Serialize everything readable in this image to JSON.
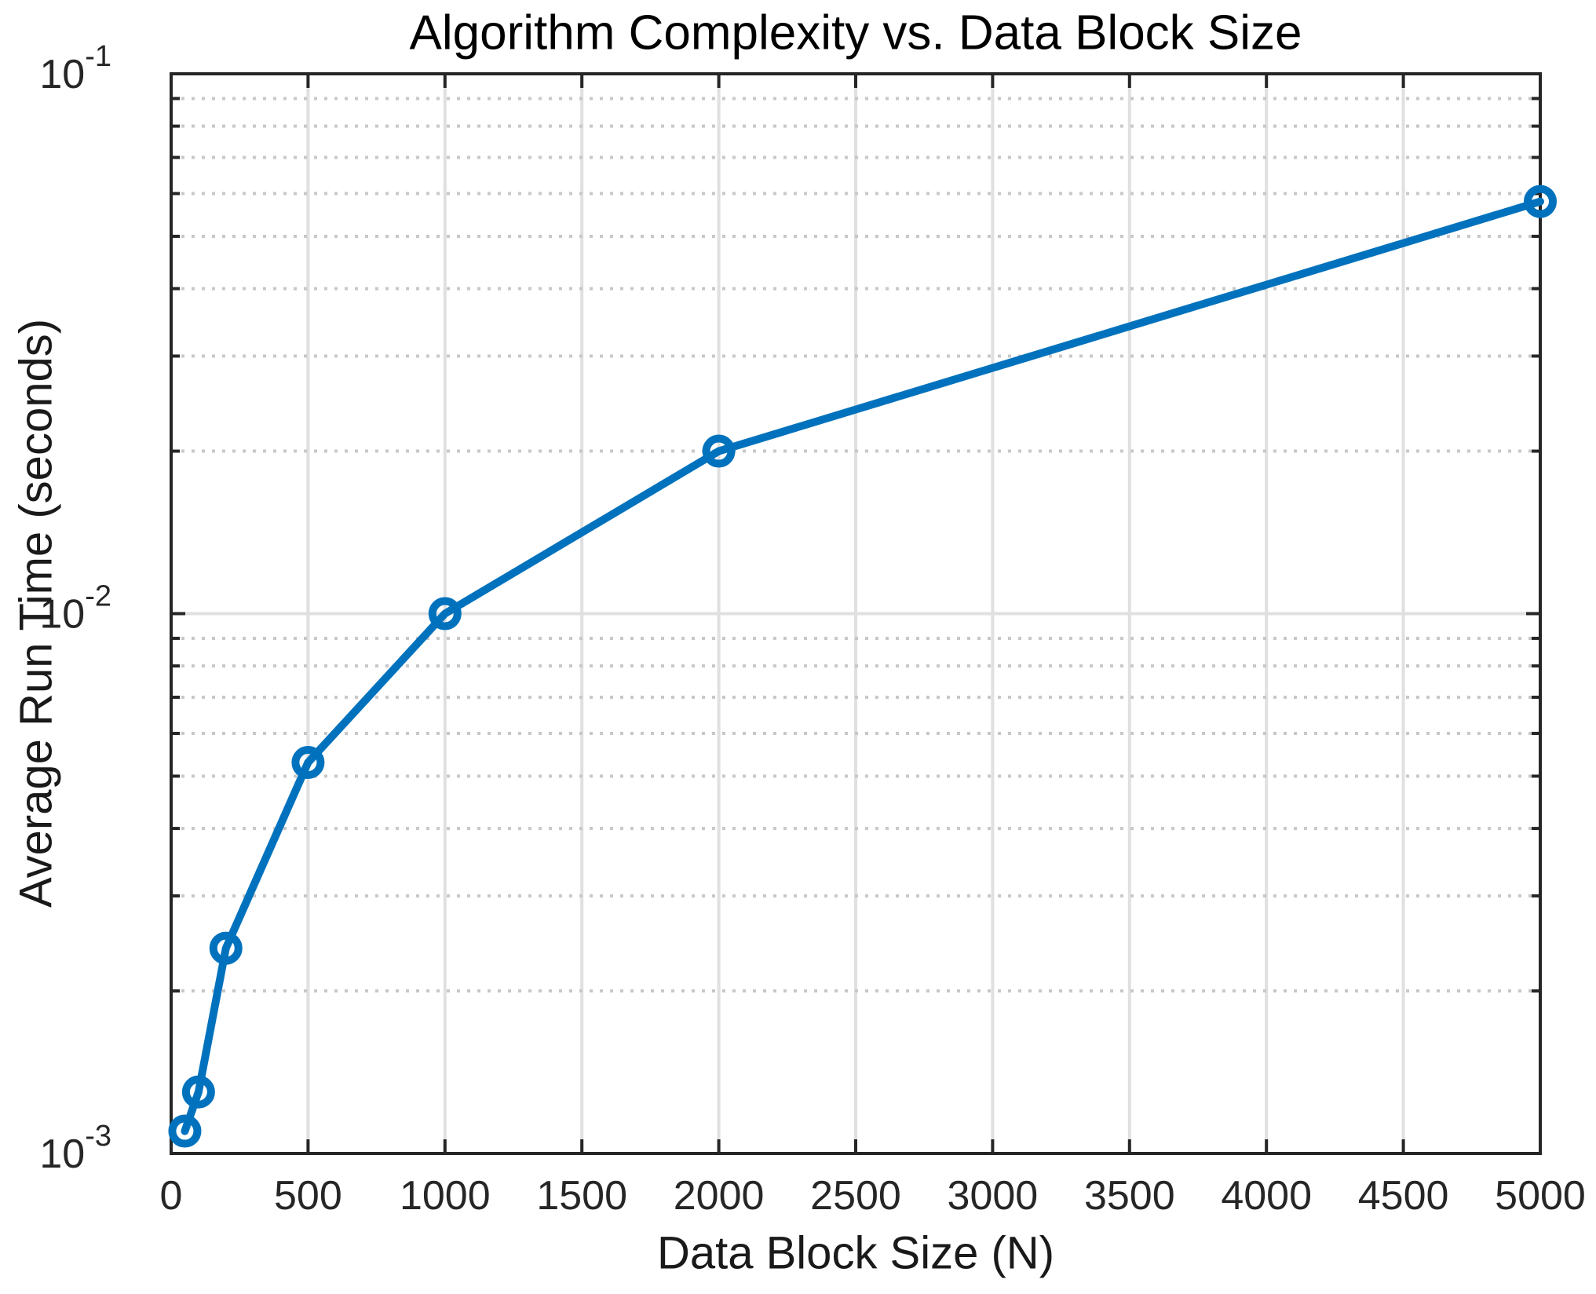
{
  "chart_data": {
    "type": "line",
    "title": "Algorithm Complexity vs. Data Block Size",
    "xlabel": "Data Block Size (N)",
    "ylabel": "Average Run Time (seconds)",
    "x": [
      50,
      100,
      200,
      500,
      1000,
      2000,
      5000
    ],
    "y": [
      0.0011,
      0.0013,
      0.0024,
      0.0053,
      0.01,
      0.02,
      0.058
    ],
    "xlim": [
      0,
      5000
    ],
    "ylim": [
      0.001,
      0.1
    ],
    "yscale": "log",
    "xticks": [
      0,
      500,
      1000,
      1500,
      2000,
      2500,
      3000,
      3500,
      4000,
      4500,
      5000
    ],
    "ytick_exponents": [
      -3,
      -2,
      -1
    ],
    "grid": "on",
    "minor_grid": "dotted",
    "legend": "none",
    "marker": "open-circle",
    "colors": {
      "line": "#0072BD",
      "axis": "#262626",
      "tick_label": "#262626",
      "major_grid": "#e0e0e0",
      "minor_grid": "#c8c8c8",
      "background": "#ffffff"
    }
  }
}
